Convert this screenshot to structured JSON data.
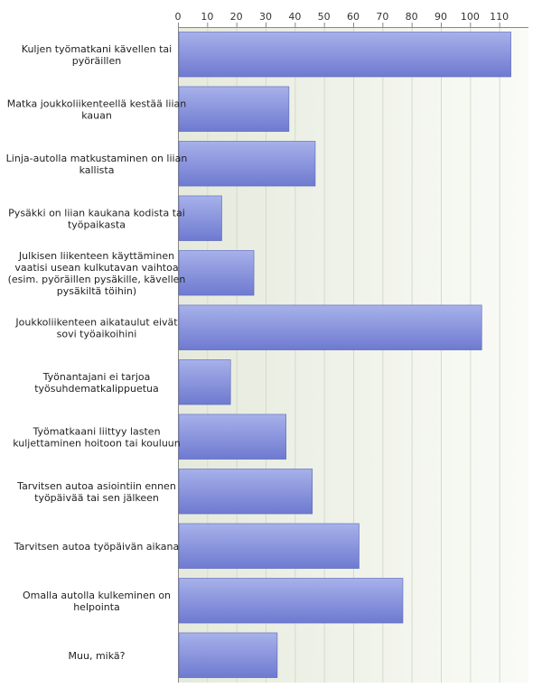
{
  "chart_data": {
    "type": "bar",
    "orientation": "horizontal",
    "categories": [
      [
        "Kuljen työmatkani kävellen tai",
        "pyöräillen"
      ],
      [
        "Matka joukkoliikenteellä kestää liian",
        "kauan"
      ],
      [
        "Linja-autolla matkustaminen on liian",
        "kallista"
      ],
      [
        "Pysäkki on liian kaukana kodista tai",
        "työpaikasta"
      ],
      [
        "Julkisen liikenteen käyttäminen",
        "vaatisi usean kulkutavan vaihtoa",
        "(esim. pyöräillen pysäkille, kävellen",
        "pysäkiltä töihin)"
      ],
      [
        "Joukkoliikenteen aikataulut eivät",
        "sovi työaikoihini"
      ],
      [
        "Työnantajani ei tarjoa",
        "työsuhdematkalippuetua"
      ],
      [
        "Työmatkaani liittyy lasten",
        "kuljettaminen hoitoon tai kouluun"
      ],
      [
        "Tarvitsen autoa asiointiin ennen",
        "työpäivää tai sen jälkeen"
      ],
      [
        "Tarvitsen autoa työpäivän aikana"
      ],
      [
        "Omalla autolla kulkeminen on",
        "helpointa"
      ],
      [
        "Muu, mikä?"
      ]
    ],
    "values": [
      114,
      38,
      47,
      15,
      26,
      104,
      18,
      37,
      46,
      62,
      77,
      34
    ],
    "xlim": [
      0,
      120
    ],
    "xticks": [
      0,
      10,
      20,
      30,
      40,
      50,
      60,
      70,
      80,
      90,
      100,
      110
    ],
    "axis_position": "top",
    "grid": true,
    "legend": "none",
    "colors": {
      "bar_top": "#a7b1ea",
      "bar_bottom": "#6e7ad0",
      "bar_edge": "#5b66b8",
      "plot_bg_left": "#e5eadc",
      "plot_bg_right": "#fafbf7",
      "grid": "#d6dacd",
      "axis": "#888888"
    }
  }
}
